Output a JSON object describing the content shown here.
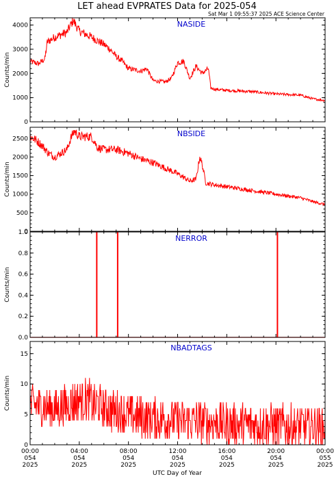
{
  "title": "LET ahead EVPRATES Data for 2025-054",
  "timestamp": "Sat Mar  1 09:55:37 2025 ACE Science Center",
  "xlabel": "UTC Day of Year",
  "x_ticks": [
    {
      "time": "00:00",
      "day": "054",
      "year": "2025"
    },
    {
      "time": "04:00",
      "day": "054",
      "year": "2025"
    },
    {
      "time": "08:00",
      "day": "054",
      "year": "2025"
    },
    {
      "time": "12:00",
      "day": "054",
      "year": "2025"
    },
    {
      "time": "16:00",
      "day": "054",
      "year": "2025"
    },
    {
      "time": "20:00",
      "day": "054",
      "year": "2025"
    },
    {
      "time": "00:00",
      "day": "055",
      "year": "2025"
    }
  ],
  "colors": {
    "series": "#ff0000",
    "panel_title": "#0000cc",
    "axes": "#000000"
  },
  "chart_data": [
    {
      "type": "line",
      "title": "NASIDE",
      "ylabel": "Counts/min",
      "xlim": [
        0,
        24
      ],
      "ylim": [
        0,
        4300
      ],
      "yticks": [
        0,
        1000,
        2000,
        3000,
        4000
      ],
      "noise": 0.05,
      "x": [
        0,
        0.7,
        1.2,
        1.4,
        2,
        3,
        3.5,
        4,
        5,
        6,
        6.5,
        7,
        7.5,
        8,
        9,
        9.5,
        10,
        11,
        11.5,
        12,
        12.5,
        13,
        13.5,
        14,
        14.5,
        14.7,
        15,
        16,
        18,
        20,
        22,
        23,
        24
      ],
      "values": [
        2500,
        2400,
        2600,
        3300,
        3500,
        3700,
        4200,
        3750,
        3500,
        3200,
        3000,
        2700,
        2500,
        2200,
        2100,
        2200,
        1700,
        1650,
        1800,
        2450,
        2500,
        1800,
        2300,
        2000,
        2200,
        1400,
        1350,
        1300,
        1250,
        1150,
        1100,
        950,
        880
      ]
    },
    {
      "type": "line",
      "title": "NBSIDE",
      "ylabel": "Counts/min",
      "xlim": [
        0,
        24
      ],
      "ylim": [
        0,
        2800
      ],
      "yticks": [
        0,
        500,
        1000,
        1500,
        2000,
        2500
      ],
      "noise": 0.05,
      "x": [
        0,
        0.5,
        1,
        1.5,
        2,
        3,
        3.3,
        3.6,
        4,
        5,
        5.5,
        6,
        7,
        8,
        9,
        10,
        11,
        12,
        12.5,
        13,
        13.5,
        13.8,
        14,
        14.3,
        15,
        16,
        18,
        20,
        22,
        23,
        24
      ],
      "values": [
        2550,
        2450,
        2300,
        2100,
        2000,
        2200,
        2500,
        2700,
        2550,
        2550,
        2250,
        2200,
        2200,
        2100,
        1950,
        1850,
        1700,
        1550,
        1450,
        1350,
        1400,
        2000,
        1800,
        1300,
        1250,
        1200,
        1100,
        1000,
        900,
        800,
        720
      ]
    },
    {
      "type": "line",
      "title": "NERROR",
      "ylabel": "Counts/min",
      "xlim": [
        0,
        24
      ],
      "ylim": [
        0,
        1.0
      ],
      "yticks": [
        0.0,
        0.2,
        0.4,
        0.6,
        0.8,
        1.0
      ],
      "spikes": [
        5.4,
        7.1,
        20.1
      ],
      "baseline": 0,
      "spike_value": 1
    },
    {
      "type": "line",
      "title": "NBADTAGS",
      "ylabel": "Counts/min",
      "xlim": [
        0,
        24
      ],
      "ylim": [
        0,
        17
      ],
      "yticks": [
        0,
        5,
        10,
        15
      ],
      "noise_abs": 3.5,
      "x": [
        0,
        2,
        3,
        4,
        5,
        6,
        7,
        8,
        10,
        12,
        14,
        16,
        18,
        20,
        22,
        24
      ],
      "values": [
        6.5,
        6,
        6.5,
        7.5,
        7,
        6,
        5.5,
        4.8,
        4.3,
        4,
        3.8,
        3.5,
        3.3,
        3.2,
        3,
        3
      ]
    }
  ]
}
